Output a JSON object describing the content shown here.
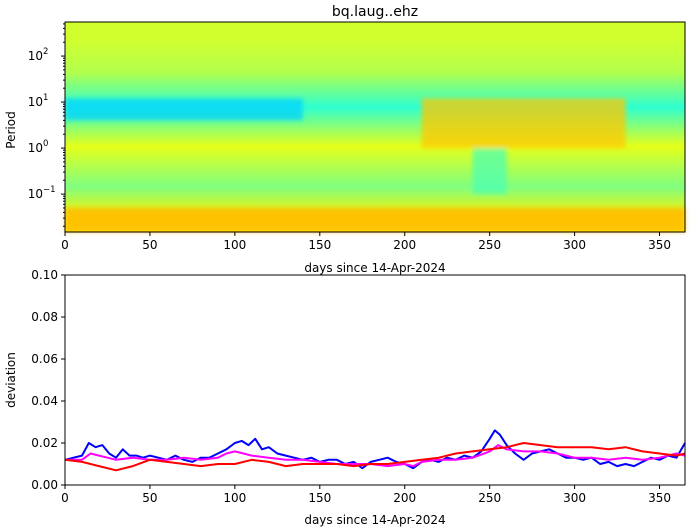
{
  "chart_data": [
    {
      "type": "heatmap",
      "title": "bq.laug..ehz",
      "xlabel": "days since 14-Apr-2024",
      "ylabel": "Period",
      "xlim": [
        0,
        365
      ],
      "ylim": [
        0.015,
        550
      ],
      "yscale": "log",
      "xticks": [
        0,
        50,
        100,
        150,
        200,
        250,
        300,
        350
      ],
      "xtick_labels": [
        "0",
        "50",
        "100",
        "150",
        "200",
        "250",
        "300",
        "350"
      ],
      "ytick_labels": [
        "10^-1",
        "10^0",
        "10^1",
        "10^2"
      ],
      "colormap": "jet",
      "period_bands": [
        {
          "period_range": [
            100,
            550
          ],
          "level": 0.58
        },
        {
          "period_range": [
            20,
            100
          ],
          "level": 0.55
        },
        {
          "period_range": [
            4,
            15
          ],
          "level": 0.42
        },
        {
          "period_range": [
            0.3,
            4
          ],
          "level": 0.6
        },
        {
          "period_range": [
            0.07,
            0.3
          ],
          "level": 0.5
        },
        {
          "period_range": [
            0.015,
            0.07
          ],
          "level": 0.64
        }
      ],
      "features": [
        {
          "kind": "low",
          "x_range": [
            0,
            140
          ],
          "period_range": [
            4,
            12
          ],
          "level": 0.33
        },
        {
          "kind": "high",
          "x_range": [
            210,
            330
          ],
          "period_range": [
            1,
            12
          ],
          "level": 0.68
        },
        {
          "kind": "low",
          "x_range": [
            240,
            260
          ],
          "period_range": [
            0.1,
            1
          ],
          "level": 0.45
        },
        {
          "kind": "high",
          "x_range": [
            0,
            365
          ],
          "period_range": [
            0.015,
            0.05
          ],
          "level": 0.7
        }
      ]
    },
    {
      "type": "line",
      "xlabel": "days since 14-Apr-2024",
      "ylabel": "deviation",
      "xlim": [
        0,
        365
      ],
      "ylim": [
        0,
        0.1
      ],
      "xticks": [
        0,
        50,
        100,
        150,
        200,
        250,
        300,
        350
      ],
      "xtick_labels": [
        "0",
        "50",
        "100",
        "150",
        "200",
        "250",
        "300",
        "350"
      ],
      "yticks": [
        0,
        0.02,
        0.04,
        0.06,
        0.08,
        0.1
      ],
      "ytick_labels": [
        "0.00",
        "0.02",
        "0.04",
        "0.06",
        "0.08",
        "0.10"
      ],
      "series": [
        {
          "color": "#0000ff",
          "x": [
            0,
            5,
            10,
            14,
            18,
            22,
            26,
            30,
            34,
            38,
            42,
            46,
            50,
            55,
            60,
            65,
            70,
            75,
            80,
            85,
            90,
            95,
            100,
            104,
            108,
            112,
            116,
            120,
            125,
            130,
            135,
            140,
            145,
            150,
            155,
            160,
            165,
            170,
            175,
            180,
            185,
            190,
            195,
            200,
            205,
            210,
            215,
            220,
            225,
            230,
            235,
            240,
            245,
            250,
            253,
            256,
            260,
            265,
            270,
            275,
            280,
            285,
            290,
            295,
            300,
            305,
            310,
            315,
            320,
            325,
            330,
            335,
            340,
            345,
            350,
            355,
            360,
            365
          ],
          "y": [
            0.012,
            0.013,
            0.014,
            0.02,
            0.018,
            0.019,
            0.015,
            0.013,
            0.017,
            0.014,
            0.014,
            0.013,
            0.014,
            0.013,
            0.012,
            0.014,
            0.012,
            0.011,
            0.013,
            0.013,
            0.015,
            0.017,
            0.02,
            0.021,
            0.019,
            0.022,
            0.017,
            0.018,
            0.015,
            0.014,
            0.013,
            0.012,
            0.013,
            0.011,
            0.012,
            0.012,
            0.01,
            0.011,
            0.008,
            0.011,
            0.012,
            0.013,
            0.011,
            0.01,
            0.008,
            0.011,
            0.012,
            0.011,
            0.013,
            0.012,
            0.014,
            0.013,
            0.016,
            0.022,
            0.026,
            0.024,
            0.019,
            0.015,
            0.012,
            0.015,
            0.016,
            0.017,
            0.015,
            0.013,
            0.013,
            0.012,
            0.013,
            0.01,
            0.011,
            0.009,
            0.01,
            0.009,
            0.011,
            0.013,
            0.012,
            0.014,
            0.013,
            0.02
          ]
        },
        {
          "color": "#ff00ff",
          "x": [
            0,
            10,
            15,
            20,
            25,
            30,
            40,
            50,
            60,
            70,
            80,
            90,
            95,
            100,
            105,
            110,
            120,
            130,
            140,
            150,
            160,
            170,
            180,
            190,
            200,
            205,
            210,
            220,
            230,
            240,
            250,
            255,
            260,
            270,
            280,
            290,
            300,
            310,
            320,
            330,
            340,
            350,
            360,
            365
          ],
          "y": [
            0.012,
            0.012,
            0.015,
            0.014,
            0.013,
            0.012,
            0.013,
            0.012,
            0.012,
            0.013,
            0.012,
            0.013,
            0.015,
            0.016,
            0.015,
            0.014,
            0.013,
            0.012,
            0.012,
            0.011,
            0.01,
            0.01,
            0.01,
            0.009,
            0.01,
            0.009,
            0.011,
            0.012,
            0.012,
            0.013,
            0.016,
            0.019,
            0.017,
            0.016,
            0.016,
            0.015,
            0.013,
            0.013,
            0.012,
            0.013,
            0.012,
            0.013,
            0.015,
            0.014
          ]
        },
        {
          "color": "#ff0000",
          "x": [
            0,
            10,
            20,
            30,
            40,
            50,
            60,
            70,
            80,
            90,
            100,
            110,
            120,
            130,
            140,
            150,
            160,
            170,
            180,
            190,
            200,
            210,
            220,
            230,
            240,
            250,
            260,
            270,
            280,
            290,
            300,
            310,
            320,
            330,
            340,
            350,
            360,
            365
          ],
          "y": [
            0.012,
            0.011,
            0.009,
            0.007,
            0.009,
            0.012,
            0.011,
            0.01,
            0.009,
            0.01,
            0.01,
            0.012,
            0.011,
            0.009,
            0.01,
            0.01,
            0.01,
            0.009,
            0.01,
            0.01,
            0.011,
            0.012,
            0.013,
            0.015,
            0.016,
            0.017,
            0.018,
            0.02,
            0.019,
            0.018,
            0.018,
            0.018,
            0.017,
            0.018,
            0.016,
            0.015,
            0.014,
            0.015
          ]
        }
      ]
    }
  ]
}
